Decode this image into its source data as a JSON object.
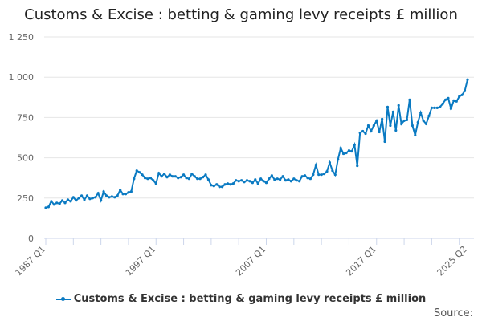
{
  "title": "Customs & Excise : betting & gaming levy receipts £ million",
  "source_label": "Source:",
  "chart_data": {
    "type": "line",
    "title": "Customs & Excise : betting & gaming levy receipts £ million",
    "x_start": "1987 Q1",
    "x_end": "2025 Q2",
    "frequency": "quarterly",
    "x_tick_labels": [
      "1987 Q1",
      "1997 Q1",
      "2007 Q1",
      "2017 Q1",
      "2025 Q2"
    ],
    "y_ticks": [
      0,
      250,
      500,
      750,
      1000,
      1250
    ],
    "y_tick_labels": [
      "0",
      "250",
      "500",
      "750",
      "1 000",
      "1 250"
    ],
    "ylim": [
      0,
      1250
    ],
    "grid": "horizontal",
    "legend_position": "bottom",
    "color": "#0a7ac2",
    "series": [
      {
        "name": "Customs & Excise : betting & gaming levy receipts £ million",
        "values": [
          190,
          195,
          230,
          210,
          220,
          215,
          235,
          220,
          240,
          230,
          255,
          235,
          250,
          265,
          240,
          265,
          245,
          250,
          255,
          280,
          235,
          290,
          265,
          255,
          260,
          255,
          265,
          300,
          275,
          275,
          285,
          290,
          370,
          420,
          410,
          395,
          375,
          370,
          375,
          360,
          340,
          405,
          385,
          400,
          380,
          395,
          385,
          385,
          375,
          380,
          395,
          375,
          370,
          400,
          385,
          370,
          370,
          380,
          395,
          365,
          330,
          325,
          335,
          320,
          320,
          335,
          340,
          335,
          340,
          360,
          355,
          360,
          350,
          360,
          355,
          345,
          365,
          340,
          370,
          355,
          345,
          370,
          390,
          365,
          370,
          365,
          385,
          360,
          365,
          355,
          370,
          360,
          355,
          385,
          390,
          375,
          370,
          395,
          455,
          395,
          395,
          400,
          415,
          470,
          420,
          395,
          490,
          560,
          525,
          530,
          545,
          540,
          580,
          450,
          655,
          665,
          650,
          700,
          665,
          700,
          730,
          660,
          740,
          600,
          815,
          700,
          785,
          670,
          825,
          710,
          730,
          735,
          860,
          700,
          640,
          720,
          780,
          730,
          710,
          760,
          810,
          810,
          810,
          815,
          835,
          860,
          870,
          805,
          855,
          850,
          880,
          890,
          915,
          985
        ]
      }
    ]
  }
}
